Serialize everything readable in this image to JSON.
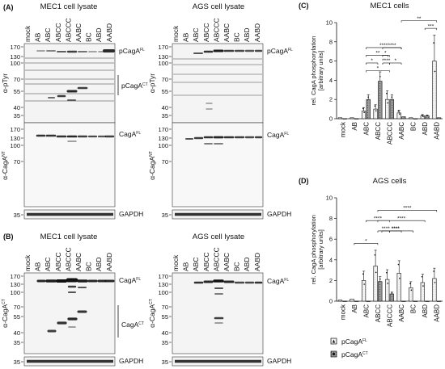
{
  "panels": {
    "A": {
      "letter": "(A)",
      "left_title": "MEC1 cell lysate",
      "right_title": "AGS cell lysate",
      "lanes": [
        "mock",
        "AB",
        "ABC",
        "ABCC",
        "ABCCC",
        "AABC",
        "BC",
        "ABD",
        "AABD"
      ],
      "ylabel_top": "α-pTyr",
      "ylabel_mid": "α-CagA",
      "ylabel_mid_sup": "NT",
      "label_pcaga": "pCagA",
      "label_pcaga_ct": "pCagA",
      "label_caga": "CagA",
      "sup_fl": "FL",
      "sup_ct": "CT",
      "gapdh": "GAPDH",
      "mw_top": [
        "170",
        "130",
        "100",
        "70",
        "55",
        "40",
        "35"
      ],
      "mw_mid": [
        "170",
        "130",
        "100",
        "70"
      ],
      "mw_gapdh": "35"
    },
    "B": {
      "letter": "(B)",
      "left_title": "MEC1 cell lysate",
      "right_title": "AGS cell lysate",
      "lanes": [
        "mock",
        "AB",
        "ABC",
        "ABCC",
        "ABCCC",
        "AABC",
        "BC",
        "ABD",
        "AABD"
      ],
      "ylabel": "α-CagA",
      "ylabel_sup": "CT",
      "label_caga": "CagA",
      "label_caga_ct": "CagA",
      "sup_fl": "FL",
      "sup_ct": "CT",
      "gapdh": "GAPDH",
      "mw_left": [
        "170",
        "130",
        "100",
        "70",
        "55",
        "40",
        "35"
      ],
      "mw_right": [
        "170",
        "130",
        "100",
        "70",
        "55",
        "40",
        "35"
      ],
      "mw_gapdh": "35"
    }
  },
  "chart_data": [
    {
      "panel": "(C)",
      "type": "bar",
      "title": "MEC1 cells",
      "ylabel": "rel. CagA phosphorylation\n[arbitrary units]",
      "categories": [
        "mock",
        "AB",
        "ABC",
        "ABCC",
        "ABCCC",
        "AABC",
        "BC",
        "ABD",
        "AABD"
      ],
      "ylim": [
        0,
        10
      ],
      "yticks": [
        "0",
        "2",
        "4",
        "6",
        "8",
        "10"
      ],
      "series": [
        {
          "name": "pCagA FL",
          "values": [
            0.1,
            0.1,
            0.8,
            1.0,
            2.0,
            0.6,
            0.1,
            0.3,
            6.0
          ]
        },
        {
          "name": "pCagA CT",
          "values": [
            0.0,
            0.0,
            2.0,
            3.9,
            2.0,
            0.2,
            0.0,
            0.3,
            0.1
          ]
        }
      ],
      "significance": [
        "****",
        "**",
        "*",
        "****",
        "*",
        "****",
        "*",
        "*",
        "**",
        "***"
      ]
    },
    {
      "panel": "(D)",
      "type": "bar",
      "title": "AGS cells",
      "ylabel": "rel. CagA phosphorylation\n[arbitrary units]",
      "categories": [
        "mock",
        "AB",
        "ABC",
        "ABCC",
        "ABCCC",
        "AABC",
        "BC",
        "ABD",
        "AABD"
      ],
      "ylim": [
        0,
        10
      ],
      "yticks": [
        "0",
        "2",
        "4",
        "6",
        "8",
        "10"
      ],
      "series": [
        {
          "name": "pCagA FL",
          "values": [
            0.1,
            0.2,
            2.0,
            3.4,
            2.1,
            2.7,
            1.3,
            1.8,
            2.2
          ]
        },
        {
          "name": "pCagA CT",
          "values": [
            0.0,
            0.0,
            0.0,
            1.9,
            0.7,
            0.0,
            0.0,
            0.0,
            0.0
          ]
        }
      ],
      "significance": [
        "****",
        "****",
        "****",
        "****",
        "****",
        "****",
        "*"
      ]
    }
  ],
  "legend": {
    "fl_label": "pCagA",
    "fl_sup": "FL",
    "ct_label": "pCagA",
    "ct_sup": "CT"
  }
}
